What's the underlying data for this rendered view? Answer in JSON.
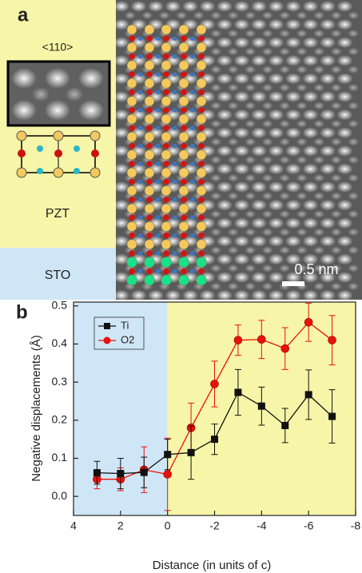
{
  "panel_a": {
    "label": "a",
    "orientation": "<110>",
    "top_layer": "PZT",
    "bottom_layer": "STO",
    "scale_bar": "0.5 nm"
  },
  "chart_data": {
    "type": "line",
    "panel_label": "b",
    "x_label": "Distance (in units of c)",
    "y_label": "Negative displacements (Å)",
    "x": [
      3,
      2,
      1,
      0,
      -1,
      -2,
      -3,
      -4,
      -5,
      -6,
      -7
    ],
    "series": [
      {
        "name": "Ti",
        "color": "#111111",
        "marker": "square",
        "values": [
          0.062,
          0.06,
          0.063,
          0.11,
          0.115,
          0.15,
          0.273,
          0.237,
          0.186,
          0.267,
          0.21
        ],
        "errors": [
          0.03,
          0.04,
          0.04,
          0.04,
          0.07,
          0.04,
          0.06,
          0.05,
          0.045,
          0.065,
          0.07
        ]
      },
      {
        "name": "O2",
        "color": "#e8120c",
        "marker": "circle",
        "values": [
          0.045,
          0.045,
          0.07,
          0.058,
          0.18,
          0.295,
          0.41,
          0.412,
          0.388,
          0.457,
          0.41
        ],
        "errors": [
          0.025,
          0.03,
          0.06,
          0.095,
          0.065,
          0.06,
          0.04,
          0.05,
          0.055,
          0.05,
          0.065
        ]
      }
    ],
    "xlim": [
      4,
      -8
    ],
    "xticks": [
      4,
      2,
      0,
      -2,
      -4,
      -6,
      -8
    ],
    "ylim": [
      -0.05,
      0.51
    ],
    "yticks": [
      {
        "value": 0,
        "label": "0.0"
      },
      0.1,
      0.2,
      0.3,
      0.4,
      0.5
    ],
    "background_regions": [
      {
        "from": 4,
        "to": 0,
        "color": "#cfe6f7"
      },
      {
        "from": 0,
        "to": -8,
        "color": "#f7f5a8"
      }
    ],
    "legend": "upper left"
  }
}
